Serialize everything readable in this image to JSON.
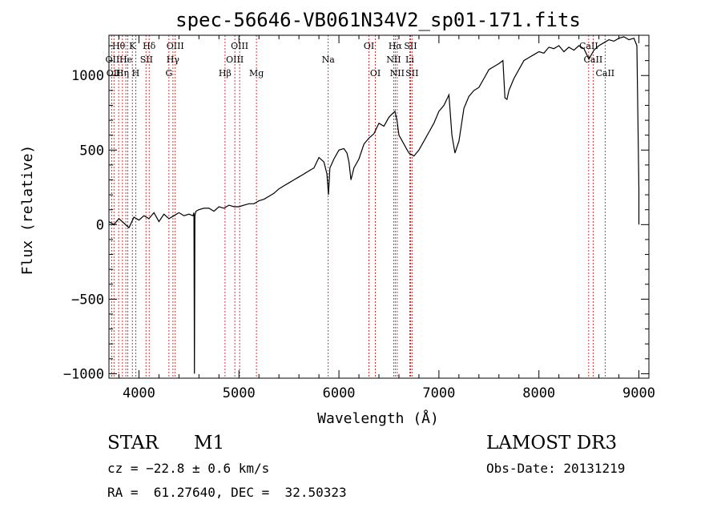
{
  "chart_data": {
    "type": "line",
    "title": "spec-56646-VB061N34V2_sp01-171.fits",
    "xlabel": "Wavelength (Å)",
    "ylabel": "Flux (relative)",
    "xlim": [
      3700,
      9100
    ],
    "ylim": [
      -1030,
      1270
    ],
    "xticks": [
      4000,
      5000,
      6000,
      7000,
      8000,
      9000
    ],
    "xtick_labels": [
      "4000",
      "5000",
      "6000",
      "7000",
      "8000",
      "9000"
    ],
    "yticks": [
      -1000,
      -500,
      0,
      500,
      1000
    ],
    "ytick_labels": [
      "−1000",
      "−500",
      "0",
      "500",
      "1000"
    ],
    "grid": false,
    "series": [
      {
        "name": "flux",
        "x": [
          3700,
          3750,
          3800,
          3850,
          3900,
          3950,
          4000,
          4050,
          4100,
          4150,
          4200,
          4250,
          4300,
          4350,
          4400,
          4450,
          4500,
          4540,
          4550,
          4555,
          4560,
          4570,
          4600,
          4650,
          4700,
          4750,
          4800,
          4850,
          4900,
          4950,
          5000,
          5050,
          5100,
          5150,
          5200,
          5250,
          5300,
          5350,
          5400,
          5450,
          5500,
          5550,
          5600,
          5650,
          5700,
          5750,
          5800,
          5850,
          5880,
          5895,
          5910,
          5950,
          6000,
          6050,
          6080,
          6100,
          6120,
          6150,
          6200,
          6250,
          6300,
          6350,
          6400,
          6450,
          6500,
          6530,
          6560,
          6580,
          6600,
          6650,
          6700,
          6750,
          6800,
          6850,
          6900,
          6950,
          7000,
          7050,
          7100,
          7130,
          7160,
          7200,
          7250,
          7300,
          7350,
          7400,
          7450,
          7500,
          7550,
          7600,
          7640,
          7660,
          7680,
          7700,
          7750,
          7800,
          7850,
          7900,
          7950,
          8000,
          8050,
          8100,
          8150,
          8200,
          8250,
          8300,
          8350,
          8400,
          8450,
          8500,
          8550,
          8600,
          8650,
          8700,
          8750,
          8800,
          8850,
          8900,
          8950,
          8980,
          9000,
          9000
        ],
        "y": [
          20,
          0,
          40,
          10,
          -20,
          50,
          30,
          60,
          40,
          80,
          20,
          70,
          40,
          60,
          80,
          60,
          70,
          60,
          80,
          -1000,
          60,
          90,
          100,
          110,
          110,
          90,
          120,
          110,
          130,
          120,
          120,
          130,
          140,
          140,
          160,
          170,
          190,
          210,
          240,
          260,
          280,
          300,
          320,
          340,
          360,
          380,
          450,
          420,
          340,
          200,
          380,
          440,
          500,
          510,
          480,
          420,
          300,
          380,
          440,
          540,
          580,
          610,
          680,
          660,
          720,
          740,
          760,
          700,
          600,
          540,
          480,
          460,
          500,
          560,
          620,
          680,
          760,
          800,
          870,
          600,
          480,
          560,
          780,
          860,
          900,
          920,
          980,
          1040,
          1060,
          1080,
          1100,
          850,
          840,
          900,
          980,
          1040,
          1100,
          1120,
          1140,
          1160,
          1150,
          1190,
          1180,
          1200,
          1160,
          1190,
          1170,
          1200,
          1180,
          1110,
          1170,
          1200,
          1220,
          1240,
          1230,
          1250,
          1260,
          1240,
          1250,
          1200,
          240,
          0
        ]
      }
    ],
    "lines": [
      {
        "wavelength": 3727,
        "label": "OII"
      },
      {
        "wavelength": 3750,
        "label": "OII"
      },
      {
        "wavelength": 3797,
        "label": "Hθ"
      },
      {
        "wavelength": 3835,
        "label": "Hη"
      },
      {
        "wavelength": 3869,
        "label": "He"
      },
      {
        "wavelength": 3889,
        "label": "Hζ"
      },
      {
        "wavelength": 3934,
        "label": "K"
      },
      {
        "wavelength": 3968,
        "label": "H"
      },
      {
        "wavelength": 4070,
        "label": "SII"
      },
      {
        "wavelength": 4102,
        "label": "Hδ"
      },
      {
        "wavelength": 4300,
        "label": "G"
      },
      {
        "wavelength": 4340,
        "label": "Hγ"
      },
      {
        "wavelength": 4363,
        "label": "OIII"
      },
      {
        "wavelength": 4861,
        "label": "Hβ"
      },
      {
        "wavelength": 4959,
        "label": "OIII"
      },
      {
        "wavelength": 5007,
        "label": "OIII"
      },
      {
        "wavelength": 5175,
        "label": "Mg"
      },
      {
        "wavelength": 5893,
        "label": "Na"
      },
      {
        "wavelength": 6300,
        "label": "OI"
      },
      {
        "wavelength": 6364,
        "label": "OI"
      },
      {
        "wavelength": 6548,
        "label": "NII"
      },
      {
        "wavelength": 6563,
        "label": "Hα"
      },
      {
        "wavelength": 6583,
        "label": "NII"
      },
      {
        "wavelength": 6708,
        "label": "Li"
      },
      {
        "wavelength": 6716,
        "label": "SII"
      },
      {
        "wavelength": 6731,
        "label": "SII"
      },
      {
        "wavelength": 8498,
        "label": "CaII"
      },
      {
        "wavelength": 8542,
        "label": "CaII"
      },
      {
        "wavelength": 8662,
        "label": "CaII"
      }
    ],
    "line_label_rows": [
      {
        "wavelength": 3735,
        "label": "OII",
        "row": 2
      },
      {
        "wavelength": 3745,
        "label": "OII",
        "row": 3
      },
      {
        "wavelength": 3797,
        "label": "Hθ",
        "row": 1
      },
      {
        "wavelength": 3835,
        "label": "Hη",
        "row": 3
      },
      {
        "wavelength": 3869,
        "label": "He",
        "row": 2
      },
      {
        "wavelength": 3934,
        "label": "K",
        "row": 1
      },
      {
        "wavelength": 3968,
        "label": "H",
        "row": 3
      },
      {
        "wavelength": 4075,
        "label": "SII",
        "row": 2
      },
      {
        "wavelength": 4102,
        "label": "Hδ",
        "row": 1
      },
      {
        "wavelength": 4300,
        "label": "G",
        "row": 3
      },
      {
        "wavelength": 4340,
        "label": "Hγ",
        "row": 2
      },
      {
        "wavelength": 4363,
        "label": "OIII",
        "row": 1
      },
      {
        "wavelength": 4861,
        "label": "Hβ",
        "row": 3
      },
      {
        "wavelength": 4959,
        "label": "OIII",
        "row": 2
      },
      {
        "wavelength": 5007,
        "label": "OIII",
        "row": 1
      },
      {
        "wavelength": 5175,
        "label": "Mg",
        "row": 3
      },
      {
        "wavelength": 5893,
        "label": "Na",
        "row": 2
      },
      {
        "wavelength": 6300,
        "label": "OI",
        "row": 1
      },
      {
        "wavelength": 6364,
        "label": "OI",
        "row": 3
      },
      {
        "wavelength": 6548,
        "label": "NII",
        "row": 2
      },
      {
        "wavelength": 6563,
        "label": "Hα",
        "row": 1
      },
      {
        "wavelength": 6583,
        "label": "NII",
        "row": 3
      },
      {
        "wavelength": 6708,
        "label": "Li",
        "row": 2
      },
      {
        "wavelength": 6716,
        "label": "SII",
        "row": 1
      },
      {
        "wavelength": 6731,
        "label": "SII",
        "row": 3
      },
      {
        "wavelength": 8498,
        "label": "CaII",
        "row": 1
      },
      {
        "wavelength": 8542,
        "label": "CaII",
        "row": 2
      },
      {
        "wavelength": 8662,
        "label": "CaII",
        "row": 3
      }
    ],
    "colors": {
      "spectrum": "#000000",
      "line_markers": "#cc0000",
      "axes": "#000000"
    }
  },
  "info": {
    "object_class": "STAR",
    "subclass": "M1",
    "survey": "LAMOST DR3",
    "redshift": "cz = −22.8 ± 0.6 km/s",
    "obs_date": "Obs-Date: 20131219",
    "coords": "RA =  61.27640, DEC =  32.50323"
  }
}
